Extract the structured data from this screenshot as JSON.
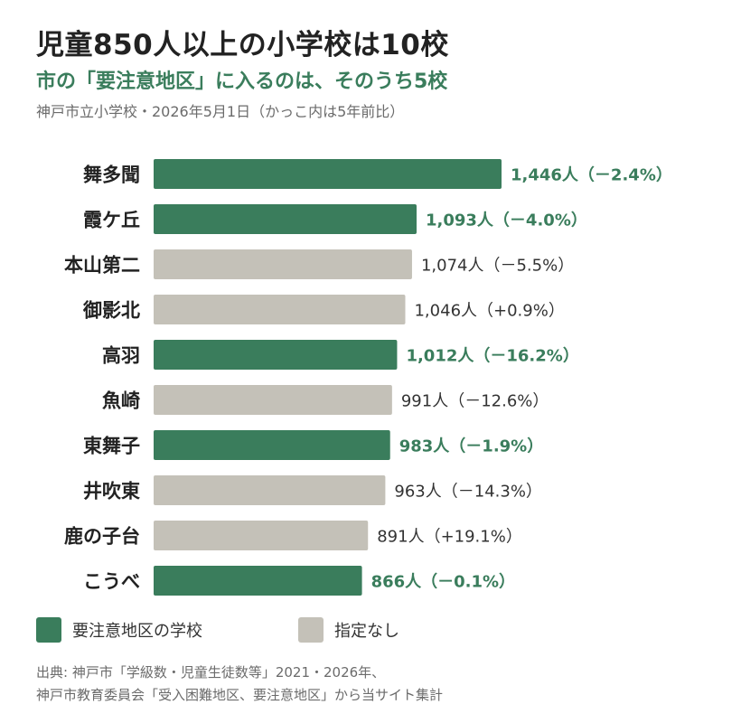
{
  "header": {
    "title": "児童850人以上の小学校は10校",
    "subtitle": "市の「要注意地区」に入るのは、そのうち5校",
    "note": "神戸市立小学校・2026年5月1日（かっこ内は5年前比）"
  },
  "colors": {
    "highlight": "#3a7d5c",
    "other": "#c4c1b8",
    "label_highlight": "#3a7d5c",
    "label_other": "#333333"
  },
  "chart_data": {
    "type": "bar",
    "orientation": "horizontal",
    "categories": [
      "舞多聞",
      "霞ケ丘",
      "本山第二",
      "御影北",
      "高羽",
      "魚崎",
      "東舞子",
      "井吹東",
      "鹿の子台",
      "こうべ"
    ],
    "values": [
      1446,
      1093,
      1074,
      1046,
      1012,
      991,
      983,
      963,
      891,
      866
    ],
    "change_percent": [
      -2.4,
      -4.0,
      -5.5,
      0.9,
      -16.2,
      -12.6,
      -1.9,
      -14.3,
      19.1,
      -0.1
    ],
    "value_labels": [
      "1,446人（－2.4%）",
      "1,093人（－4.0%）",
      "1,074人（－5.5%）",
      "1,046人（+0.9%）",
      "1,012人（－16.2%）",
      "991人（－12.6%）",
      "983人（－1.9%）",
      "963人（－14.3%）",
      "891人（+19.1%）",
      "866人（－0.1%）"
    ],
    "caution_area": [
      true,
      true,
      false,
      false,
      true,
      false,
      true,
      false,
      false,
      true
    ],
    "xlim": [
      0,
      1446
    ],
    "grid": false,
    "legend_position": "bottom-left"
  },
  "legend": {
    "items": [
      {
        "label": "要注意地区の学校",
        "color": "#3a7d5c"
      },
      {
        "label": "指定なし",
        "color": "#c4c1b8"
      }
    ]
  },
  "source": {
    "line1": "出典: 神戸市「学級数・児童生徒数等」2021・2026年、",
    "line2": "神戸市教育委員会「受入困難地区、要注意地区」から当サイト集計"
  }
}
